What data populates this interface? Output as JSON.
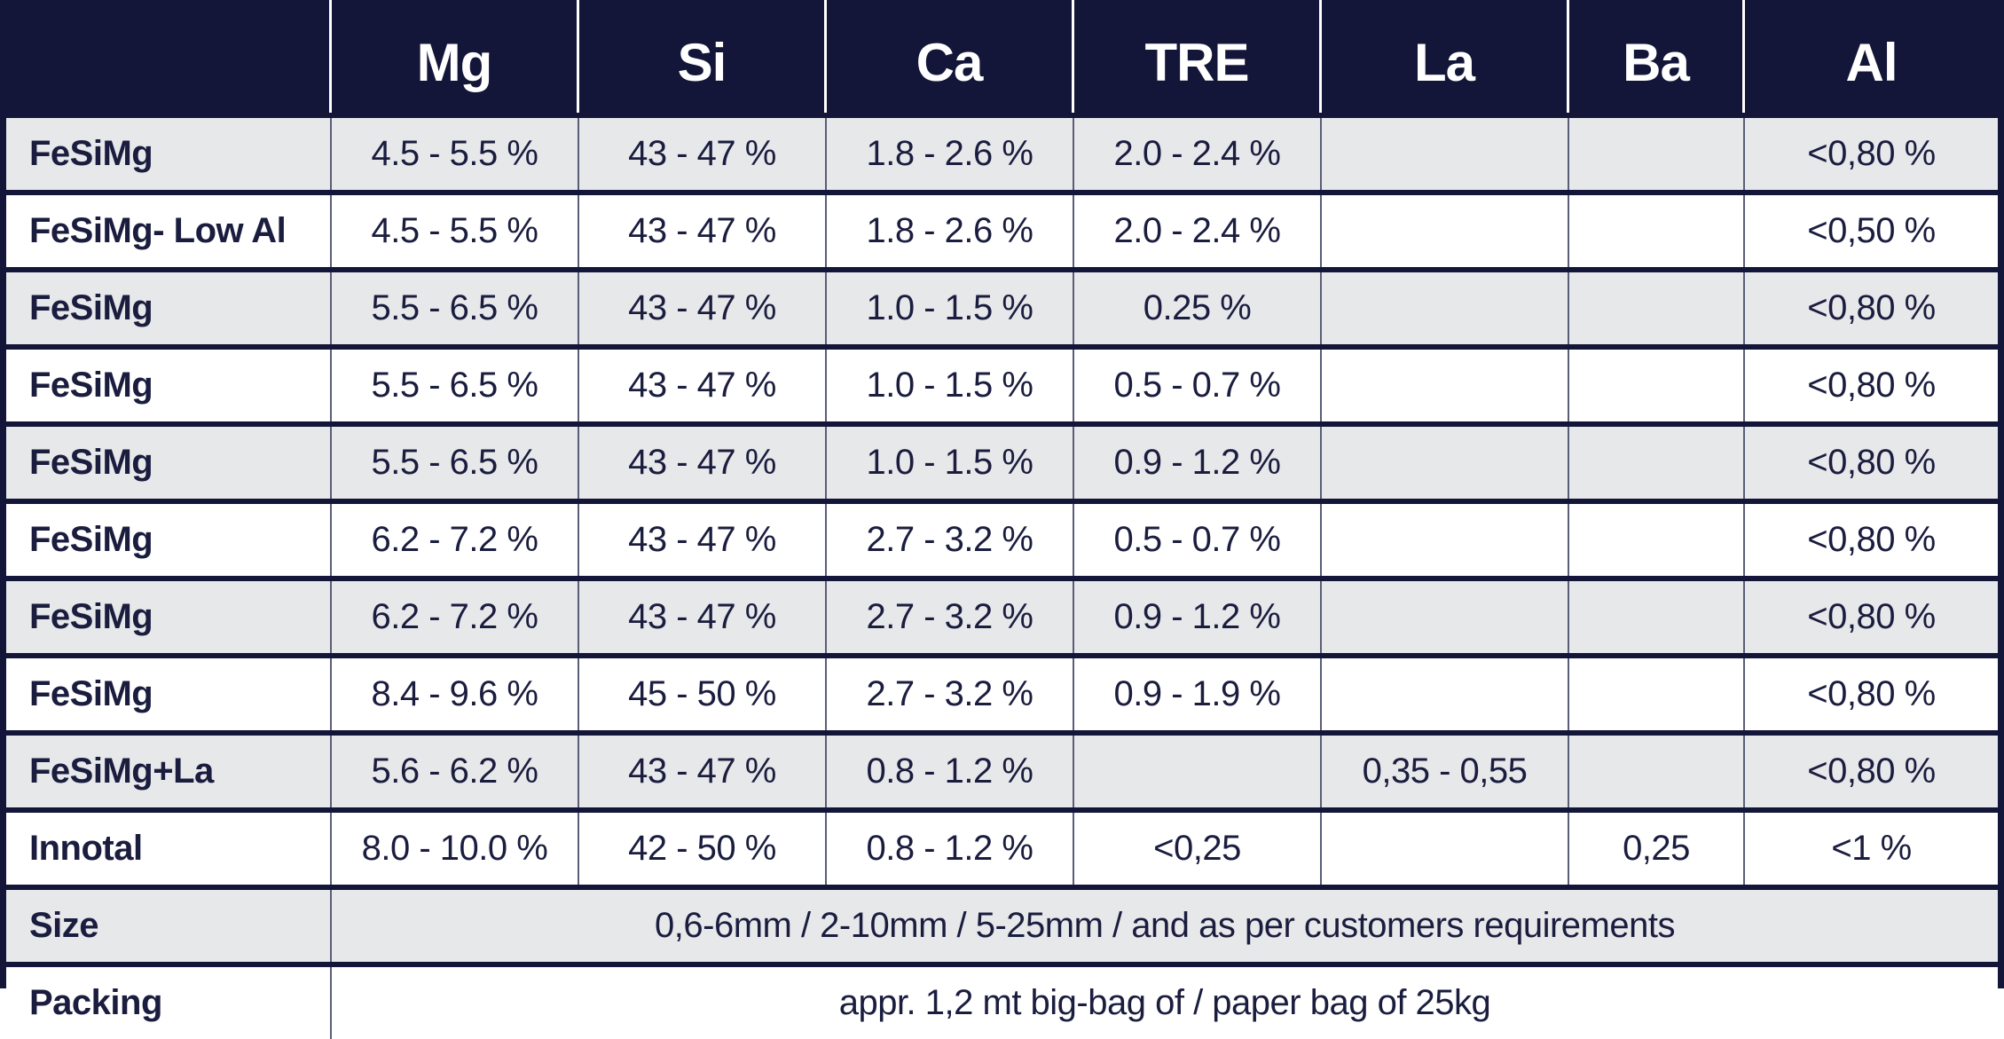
{
  "colors": {
    "navy": "#131638",
    "row_gray": "#e7e8ea",
    "row_white": "#ffffff",
    "text_navy": "#1a1d3e",
    "header_text": "#ffffff",
    "column_rule": "#5a5d78",
    "header_rule": "#ffffff"
  },
  "table": {
    "columns": [
      "",
      "Mg",
      "Si",
      "Ca",
      "TRE",
      "La",
      "Ba",
      "Al"
    ],
    "rows": [
      {
        "name": "FeSiMg",
        "values": [
          "4.5 - 5.5 %",
          "43 - 47 %",
          "1.8 - 2.6 %",
          "2.0 - 2.4 %",
          "",
          "",
          "<0,80 %"
        ]
      },
      {
        "name": "FeSiMg- Low Al",
        "values": [
          "4.5 - 5.5 %",
          "43 - 47 %",
          "1.8 - 2.6 %",
          "2.0 - 2.4 %",
          "",
          "",
          "<0,50 %"
        ]
      },
      {
        "name": "FeSiMg",
        "values": [
          "5.5 - 6.5 %",
          "43 - 47 %",
          "1.0 - 1.5 %",
          "0.25 %",
          "",
          "",
          "<0,80 %"
        ]
      },
      {
        "name": "FeSiMg",
        "values": [
          "5.5 - 6.5 %",
          "43 - 47 %",
          "1.0 - 1.5 %",
          "0.5 - 0.7 %",
          "",
          "",
          "<0,80 %"
        ]
      },
      {
        "name": "FeSiMg",
        "values": [
          "5.5 - 6.5 %",
          "43 - 47 %",
          "1.0 - 1.5 %",
          "0.9 - 1.2 %",
          "",
          "",
          "<0,80 %"
        ]
      },
      {
        "name": "FeSiMg",
        "values": [
          "6.2 - 7.2 %",
          "43 - 47 %",
          "2.7 - 3.2 %",
          "0.5 - 0.7 %",
          "",
          "",
          "<0,80 %"
        ]
      },
      {
        "name": "FeSiMg",
        "values": [
          "6.2 - 7.2 %",
          "43 - 47 %",
          "2.7 - 3.2 %",
          "0.9 - 1.2 %",
          "",
          "",
          "<0,80 %"
        ]
      },
      {
        "name": "FeSiMg",
        "values": [
          "8.4 - 9.6 %",
          "45 - 50 %",
          "2.7 - 3.2 %",
          "0.9 - 1.9 %",
          "",
          "",
          "<0,80 %"
        ]
      },
      {
        "name": "FeSiMg+La",
        "values": [
          "5.6 - 6.2 %",
          "43 - 47 %",
          "0.8 - 1.2 %",
          "",
          "0,35 - 0,55",
          "",
          "<0,80 %"
        ]
      },
      {
        "name": "Innotal",
        "values": [
          "8.0 - 10.0 %",
          "42 - 50 %",
          "0.8 - 1.2 %",
          "<0,25",
          "",
          "0,25",
          "<1 %"
        ]
      }
    ],
    "footer_rows": [
      {
        "name": "Size",
        "value": "0,6-6mm / 2-10mm / 5-25mm / and as per customers requirements"
      },
      {
        "name": "Packing",
        "value": "appr. 1,2 mt big-bag of / paper bag of 25kg"
      }
    ]
  }
}
